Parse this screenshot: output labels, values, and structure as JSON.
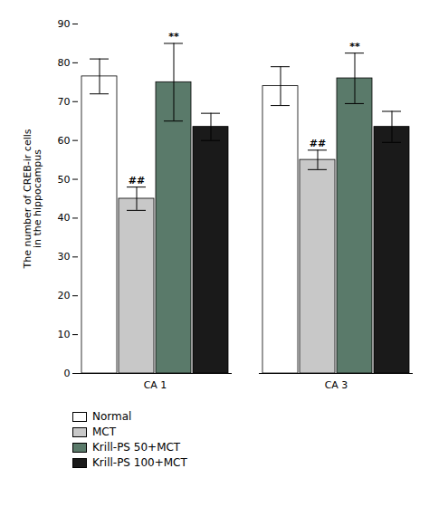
{
  "chart_data": {
    "type": "bar",
    "categories": [
      "CA 1",
      "CA 3"
    ],
    "series": [
      {
        "name": "Normal",
        "color": "#ffffff",
        "values": [
          76.5,
          74.0
        ],
        "errors": [
          4.5,
          5.0
        ]
      },
      {
        "name": "MCT",
        "color": "#c8c8c8",
        "values": [
          45.0,
          55.0
        ],
        "errors": [
          3.0,
          2.5
        ]
      },
      {
        "name": "Krill-PS 50+MCT",
        "color": "#5a7a6a",
        "values": [
          75.0,
          76.0
        ],
        "errors": [
          10.0,
          6.5
        ]
      },
      {
        "name": "Krill-PS 100+MCT",
        "color": "#1a1a1a",
        "values": [
          63.5,
          63.5
        ],
        "errors": [
          3.5,
          4.0
        ]
      }
    ],
    "ylabel": "The number of CREB-ir cells\nin the hippocampus",
    "ylim": [
      0,
      90
    ],
    "yticks": [
      0,
      10,
      20,
      30,
      40,
      50,
      60,
      70,
      80,
      90
    ],
    "annotations": [
      {
        "category": "CA 1",
        "series": "MCT",
        "text": "##"
      },
      {
        "category": "CA 1",
        "series": "Krill-PS 50+MCT",
        "text": "**"
      },
      {
        "category": "CA 3",
        "series": "MCT",
        "text": "##"
      },
      {
        "category": "CA 3",
        "series": "Krill-PS 50+MCT",
        "text": "**"
      }
    ],
    "legend": "bottom",
    "grid": false
  }
}
